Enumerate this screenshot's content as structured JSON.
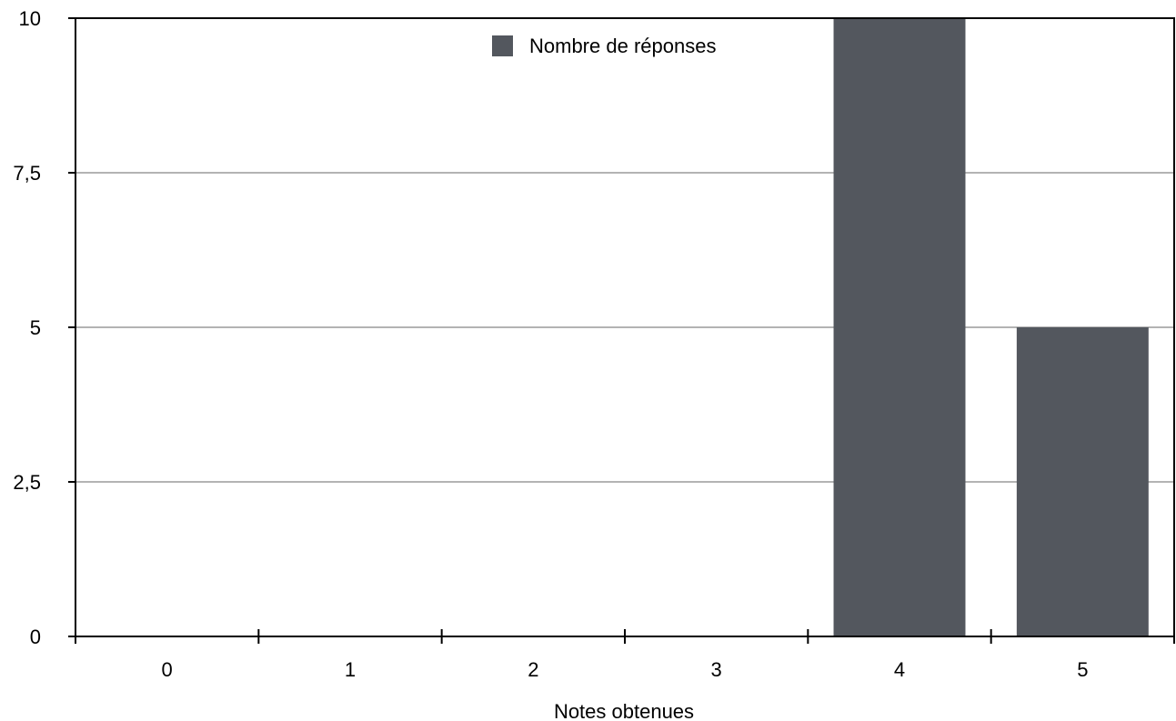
{
  "chart_data": {
    "type": "bar",
    "title": "",
    "xlabel": "Notes obtenues",
    "ylabel": "",
    "categories": [
      "0",
      "1",
      "2",
      "3",
      "4",
      "5"
    ],
    "series": [
      {
        "name": "Nombre de réponses",
        "values": [
          0,
          0,
          0,
          0,
          10,
          5
        ],
        "color": "#53575e"
      }
    ],
    "ylim": [
      0,
      10
    ],
    "yticks": [
      0,
      2.5,
      5,
      7.5,
      10
    ],
    "ytick_labels": [
      "0",
      "2,5",
      "5",
      "7,5",
      "10"
    ],
    "grid": "horizontal",
    "legend_position": "top-center"
  }
}
